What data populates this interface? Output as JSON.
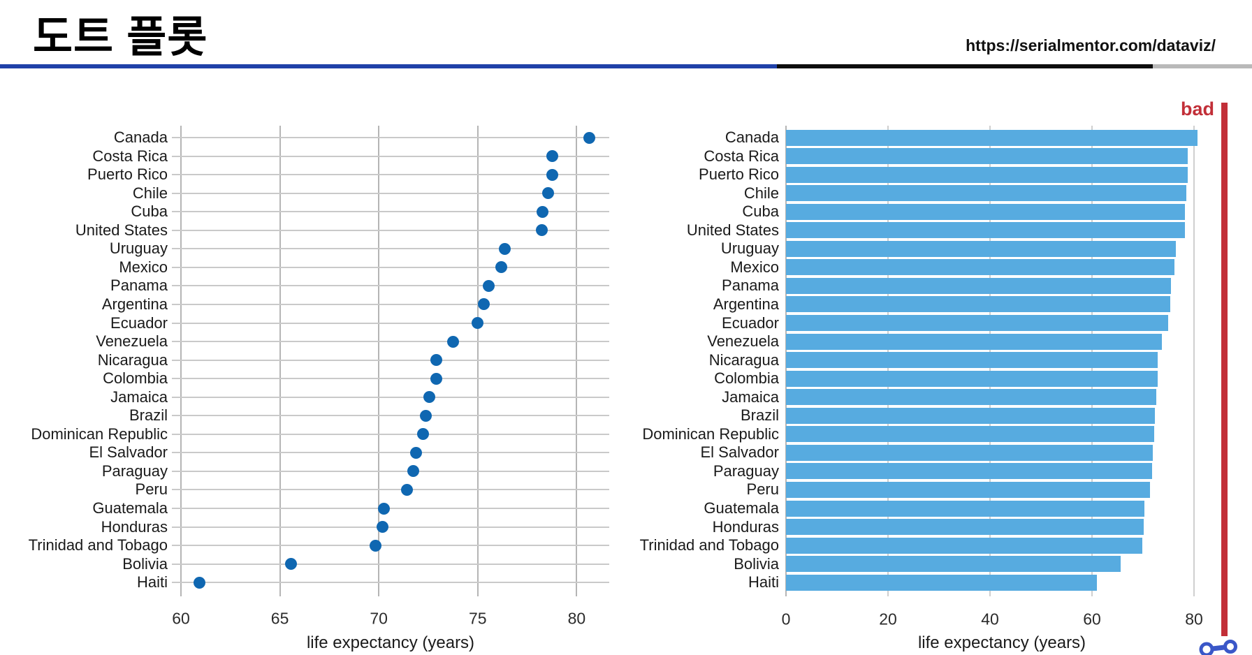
{
  "header": {
    "title": "도트 플롯",
    "url": "https://serialmentor.com/dataviz/"
  },
  "annotations": {
    "bad_label": "bad"
  },
  "colors": {
    "dot": "#0f67b1",
    "bar": "#57abe0",
    "bad_red": "#c22f38",
    "rule_blue": "#1f41a8",
    "rule_black": "#0d0d0d",
    "rule_gray": "#b9b9b9",
    "row_grid": "#c9c9c9",
    "vgrid_dot_chart": "#b5b5b5",
    "vgrid_bar_chart": "#cfcfcf",
    "vgrid_bar_zero": "#b5b5b5",
    "glyph_blue": "#3a57c8"
  },
  "chart_data": [
    {
      "type": "scatter",
      "variant": "dot-plot",
      "xlabel": "life expectancy (years)",
      "categories": [
        "Canada",
        "Costa Rica",
        "Puerto Rico",
        "Chile",
        "Cuba",
        "United States",
        "Uruguay",
        "Mexico",
        "Panama",
        "Argentina",
        "Ecuador",
        "Venezuela",
        "Nicaragua",
        "Colombia",
        "Jamaica",
        "Brazil",
        "Dominican Republic",
        "El Salvador",
        "Paraguay",
        "Peru",
        "Guatemala",
        "Honduras",
        "Trinidad and Tobago",
        "Bolivia",
        "Haiti"
      ],
      "values": [
        80.65,
        78.78,
        78.75,
        78.55,
        78.27,
        78.24,
        76.38,
        76.2,
        75.54,
        75.32,
        74.99,
        73.75,
        72.9,
        72.89,
        72.57,
        72.39,
        72.24,
        71.88,
        71.75,
        71.42,
        70.26,
        70.2,
        69.82,
        65.55,
        60.92
      ],
      "xticks": [
        60,
        65,
        70,
        75,
        80
      ],
      "xlim": [
        59.5,
        81.7
      ],
      "grid": "horizontal row lines + vertical gridlines at ticks",
      "legend": "none"
    },
    {
      "type": "bar",
      "orientation": "horizontal",
      "xlabel": "life expectancy (years)",
      "categories": [
        "Canada",
        "Costa Rica",
        "Puerto Rico",
        "Chile",
        "Cuba",
        "United States",
        "Uruguay",
        "Mexico",
        "Panama",
        "Argentina",
        "Ecuador",
        "Venezuela",
        "Nicaragua",
        "Colombia",
        "Jamaica",
        "Brazil",
        "Dominican Republic",
        "El Salvador",
        "Paraguay",
        "Peru",
        "Guatemala",
        "Honduras",
        "Trinidad and Tobago",
        "Bolivia",
        "Haiti"
      ],
      "values": [
        80.65,
        78.78,
        78.75,
        78.55,
        78.27,
        78.24,
        76.38,
        76.2,
        75.54,
        75.32,
        74.99,
        73.75,
        72.9,
        72.89,
        72.57,
        72.39,
        72.24,
        71.88,
        71.75,
        71.42,
        70.26,
        70.2,
        69.82,
        65.55,
        60.92
      ],
      "xticks": [
        0,
        20,
        40,
        60,
        80
      ],
      "xlim": [
        0,
        81.3
      ],
      "grid": "vertical gridlines at ticks",
      "legend": "none",
      "annotation": "bad"
    }
  ]
}
